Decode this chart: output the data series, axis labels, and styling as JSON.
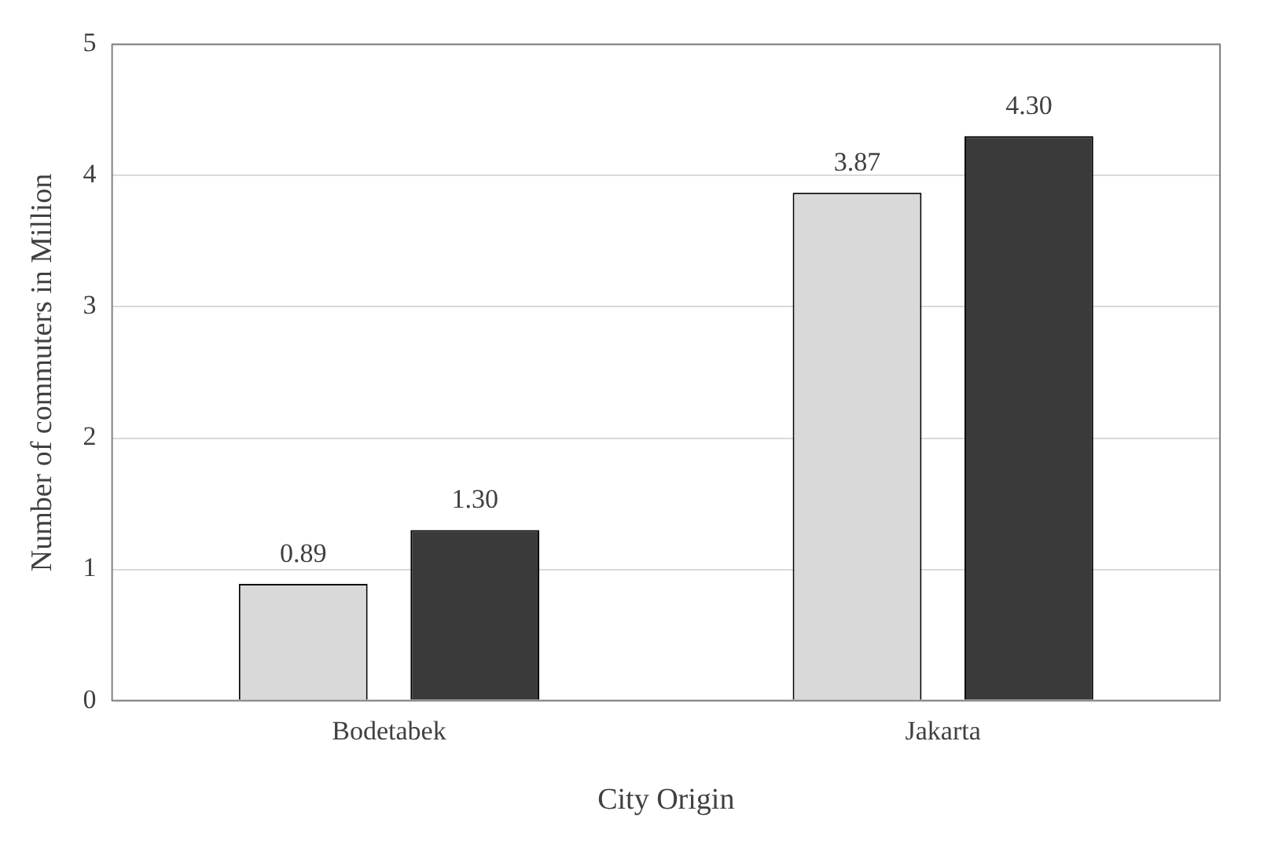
{
  "chart_data": {
    "type": "bar",
    "xlabel": "City Origin",
    "ylabel": "Number of commuters in Million",
    "categories": [
      "Bodetabek",
      "Jakarta"
    ],
    "series": [
      {
        "color": "#d9d9d9",
        "values": [
          0.89,
          3.87
        ],
        "value_labels": [
          "0.89",
          "3.87"
        ]
      },
      {
        "color": "#3a3a3a",
        "values": [
          1.3,
          4.3
        ],
        "value_labels": [
          "1.30",
          "4.30"
        ]
      }
    ],
    "ylim": [
      0,
      5
    ],
    "yticks": [
      0,
      1,
      2,
      3,
      4,
      5
    ],
    "grid": "y",
    "legend": false
  }
}
